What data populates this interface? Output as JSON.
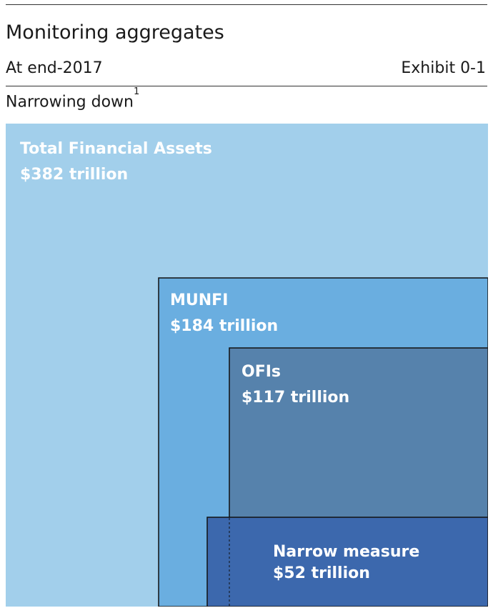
{
  "header": {
    "title": "Monitoring aggregates",
    "subtitle": "At end-2017",
    "exhibit": "Exhibit 0-1",
    "panel_title": "Narrowing down",
    "panel_footnote": "1"
  },
  "chart_data": {
    "type": "nested-area",
    "scale_reference": 382,
    "items": [
      {
        "name": "Total Financial Assets",
        "value": 382,
        "label": "$382 trillion",
        "color": "#a2cfeb"
      },
      {
        "name": "MUNFI",
        "value": 184,
        "label": "$184 trillion",
        "color": "#6aaee0"
      },
      {
        "name": "OFIs",
        "value": 117,
        "label": "$117 trillion",
        "color": "#5682ac"
      },
      {
        "name": "Narrow measure",
        "value": 52,
        "label": "$52 trillion",
        "color": "#3c68ad"
      }
    ]
  }
}
